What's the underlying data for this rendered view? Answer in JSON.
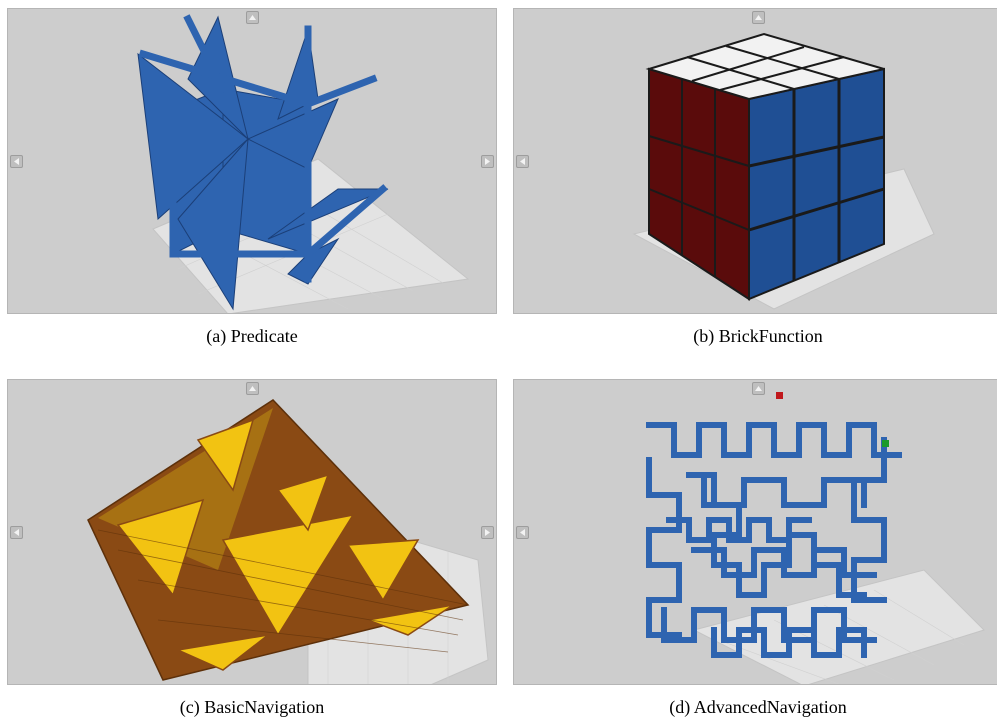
{
  "panels": [
    {
      "id": "a",
      "caption": "(a) Predicate",
      "model": "star-lattice-icon",
      "color": "#2e64b0"
    },
    {
      "id": "b",
      "caption": "(b) BrickFunction",
      "model": "cube-icon",
      "colors": [
        "#5a0b0b",
        "#1f4f94",
        "#f2f2f2"
      ]
    },
    {
      "id": "c",
      "caption": "(c) BasicNavigation",
      "model": "sierpinski-pyramid-icon",
      "colors": [
        "#8a4a14",
        "#f2c312"
      ]
    },
    {
      "id": "d",
      "caption": "(d) AdvancedNavigation",
      "model": "hilbert-curve-icon",
      "colors": [
        "#2e64b0",
        "#c0181c",
        "#1a9a2a"
      ]
    }
  ],
  "viewer": {
    "background": "#cdcdcd",
    "grid_color": "#e6e6e6"
  }
}
